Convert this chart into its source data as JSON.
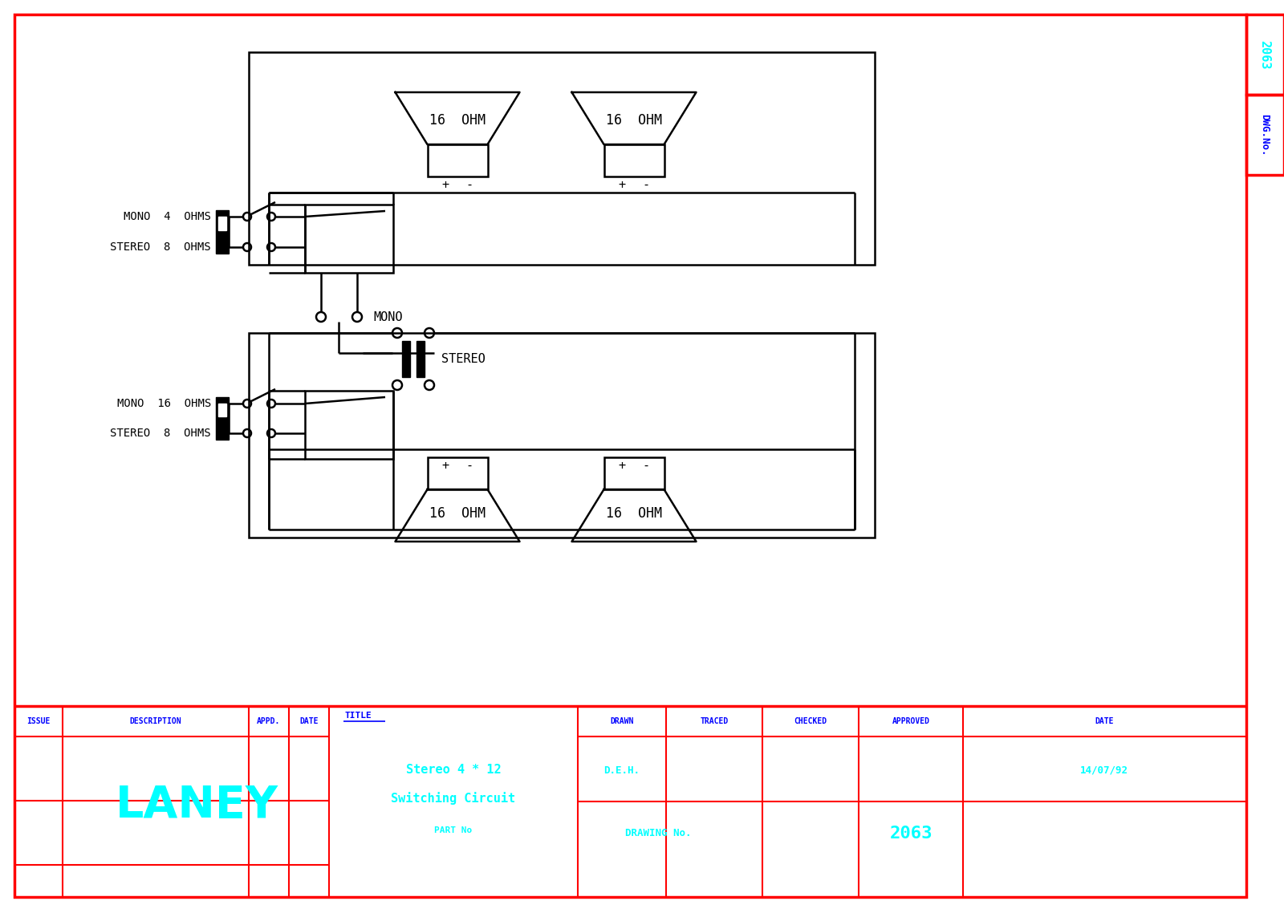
{
  "bg_color": "#ffffff",
  "border_color": "#ff0000",
  "line_color": "#000000",
  "cyan_color": "#00ffff",
  "blue_color": "#0000ff",
  "red_color": "#ff0000",
  "title_line1": "Stereo 4 * 12",
  "title_line2": "Switching Circuit",
  "part_no_label": "PART No",
  "drawn_label": "DRAWN",
  "traced_label": "TRACED",
  "checked_label": "CHECKED",
  "approved_label": "APPROVED",
  "date_label": "DATE",
  "issue_label": "ISSUE",
  "description_label": "DESCRIPTION",
  "appd_label": "APPD.",
  "title_label": "TITLE",
  "drawn_value": "D.E.H.",
  "date_value": "14/07/92",
  "drawing_no_label": "DRAWING No.",
  "drawing_no_value": "2063",
  "dwg_no_label": "DWG.No.",
  "dwg_no_value": "2063",
  "laney_text": "LANEY",
  "mono_label_top": "MONO  4  OHMS",
  "stereo_label_top": "STEREO  8  OHMS",
  "mono_label_bot": "MONO  16  OHMS",
  "stereo_label_bot": "STEREO  8  OHMS",
  "mono_label": "MONO",
  "stereo_label": "STEREO",
  "ohm_label_top": "16  OHM",
  "ohm_label_bot": "16  OHM"
}
